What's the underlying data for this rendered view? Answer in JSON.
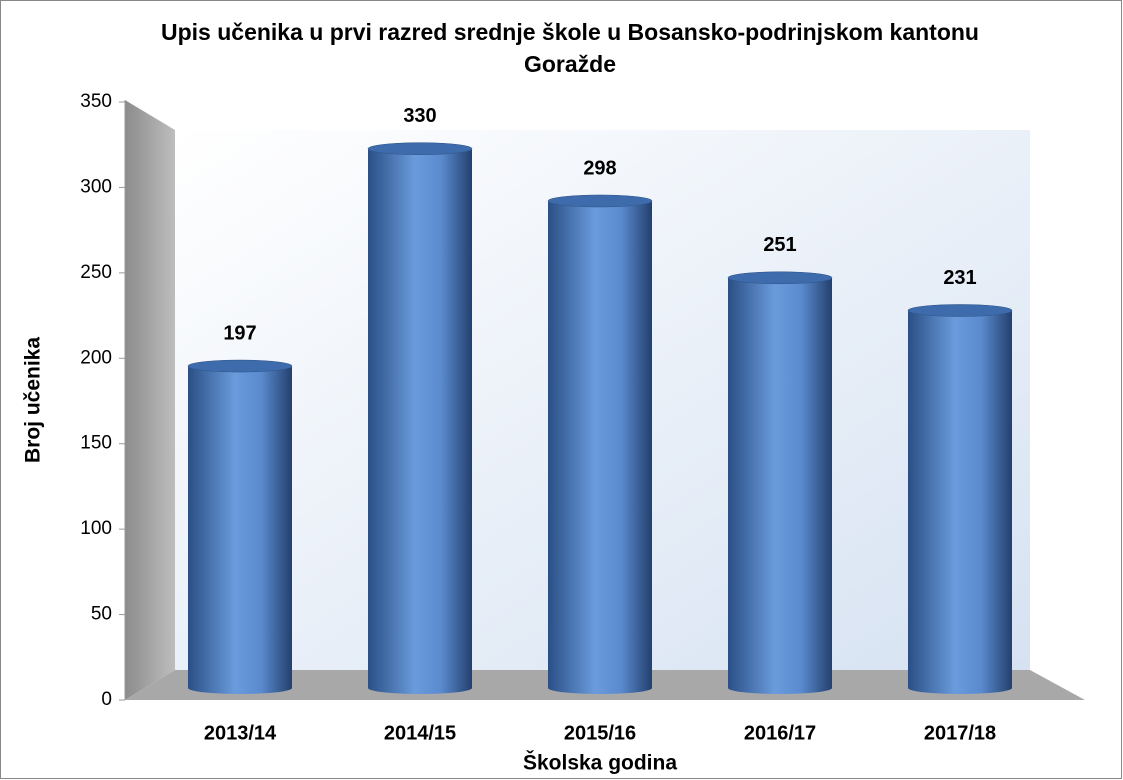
{
  "chart_data": {
    "type": "bar",
    "title": "Upis učenika u prvi razred srednje škole u Bosansko-podrinjskom kantonu Goražde",
    "x_label": "Školska godina",
    "y_label": "Broj učenika",
    "categories": [
      "2013/14",
      "2014/15",
      "2015/16",
      "2016/17",
      "2017/18"
    ],
    "values": [
      197,
      330,
      298,
      251,
      231
    ],
    "color": "#4a7cc0",
    "ylim": [
      0,
      350
    ],
    "yticks": [
      0,
      50,
      100,
      150,
      200,
      250,
      300,
      350
    ],
    "data_labels": true
  }
}
